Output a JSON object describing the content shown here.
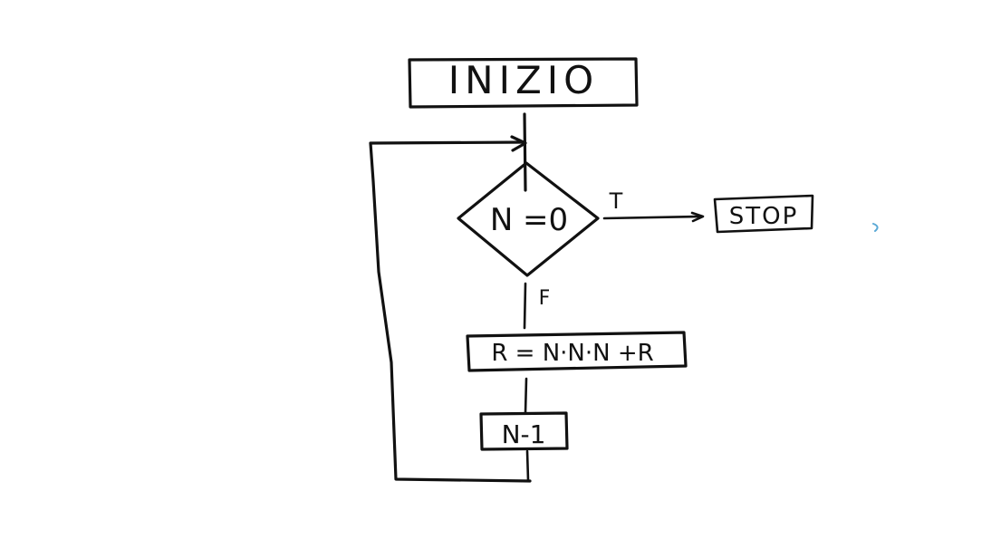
{
  "diagram": {
    "nodes": {
      "start": {
        "shape": "rectangle",
        "text": "INIZIO"
      },
      "decision": {
        "shape": "diamond",
        "text": "N =0"
      },
      "stop": {
        "shape": "rectangle",
        "text": "STOP"
      },
      "compute": {
        "shape": "rectangle",
        "text": "R = N·N·N +R"
      },
      "decrement": {
        "shape": "rectangle",
        "text": "N-1"
      }
    },
    "edges": {
      "true_label": "T",
      "false_label": "F"
    },
    "colors": {
      "ink": "#111111",
      "accent_mark": "#5aa9d6",
      "background": "#ffffff"
    }
  }
}
